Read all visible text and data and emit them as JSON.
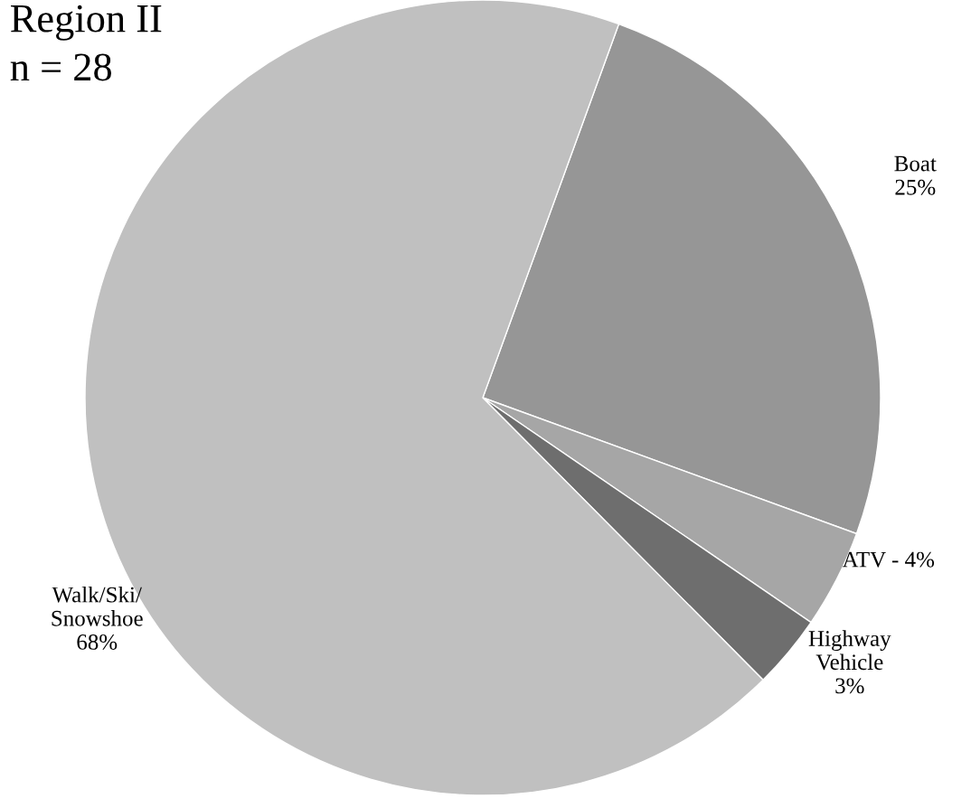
{
  "chart_data": {
    "type": "pie",
    "title": "Region II",
    "subtitle": "n = 28",
    "categories": [
      "Boat",
      "ATV",
      "Highway\nVehicle",
      "Walk/Ski/\nSnowshoe"
    ],
    "values": [
      25,
      4,
      3,
      68
    ],
    "colors": [
      "#969696",
      "#a6a6a6",
      "#6e6e6e",
      "#c0c0c0"
    ],
    "value_labels": [
      "25%",
      "4%",
      "3%",
      "68%"
    ]
  }
}
